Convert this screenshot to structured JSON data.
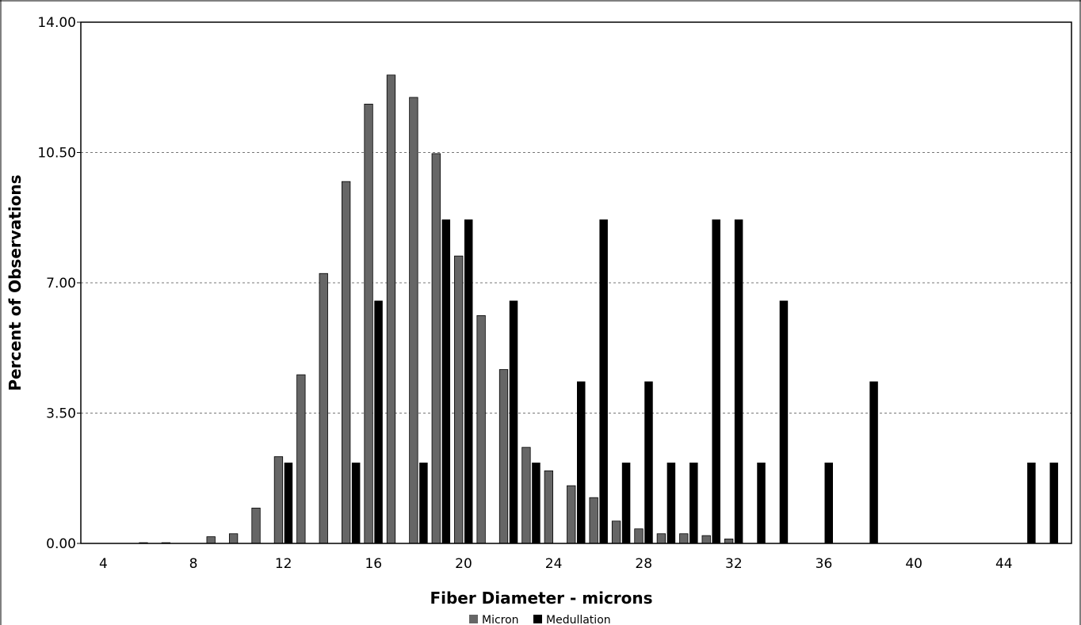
{
  "chart_data": {
    "type": "bar",
    "title": "",
    "xlabel": "Fiber Diameter - microns",
    "ylabel": "Percent of Observations",
    "xlim": [
      3,
      47
    ],
    "ylim": [
      0,
      14
    ],
    "x_ticks": [
      4,
      8,
      12,
      16,
      20,
      24,
      28,
      32,
      36,
      40,
      44
    ],
    "y_ticks": [
      0,
      3.5,
      7,
      10.5,
      14
    ],
    "y_tick_labels": [
      "0.00",
      "3.50",
      "7.00",
      "10.50",
      "14.00"
    ],
    "grid": "horizontal dashed",
    "legend": "bottom-center",
    "series": [
      {
        "name": "Micron",
        "color": "#666666",
        "x": [
          6,
          7,
          9,
          10,
          11,
          12,
          13,
          14,
          15,
          16,
          17,
          18,
          19,
          20,
          21,
          22,
          23,
          24,
          25,
          26,
          27,
          28,
          29,
          30,
          31,
          32
        ],
        "values": [
          0.02,
          0.02,
          0.18,
          0.26,
          0.95,
          2.33,
          4.53,
          7.25,
          9.72,
          11.8,
          12.58,
          11.98,
          10.47,
          7.72,
          6.12,
          4.67,
          2.58,
          1.95,
          1.55,
          1.23,
          0.6,
          0.39,
          0.26,
          0.26,
          0.21,
          0.12
        ]
      },
      {
        "name": "Medullation",
        "color": "#000000",
        "x": [
          12,
          15,
          16,
          18,
          19,
          20,
          22,
          23,
          25,
          26,
          27,
          28,
          29,
          30,
          31,
          32,
          33,
          34,
          36,
          38,
          45,
          46
        ],
        "values": [
          2.17,
          2.17,
          6.52,
          2.17,
          8.7,
          8.7,
          6.52,
          2.17,
          4.35,
          8.7,
          2.17,
          4.35,
          2.17,
          2.17,
          8.7,
          8.7,
          2.17,
          6.52,
          2.17,
          4.35,
          2.17,
          2.17
        ]
      }
    ]
  }
}
